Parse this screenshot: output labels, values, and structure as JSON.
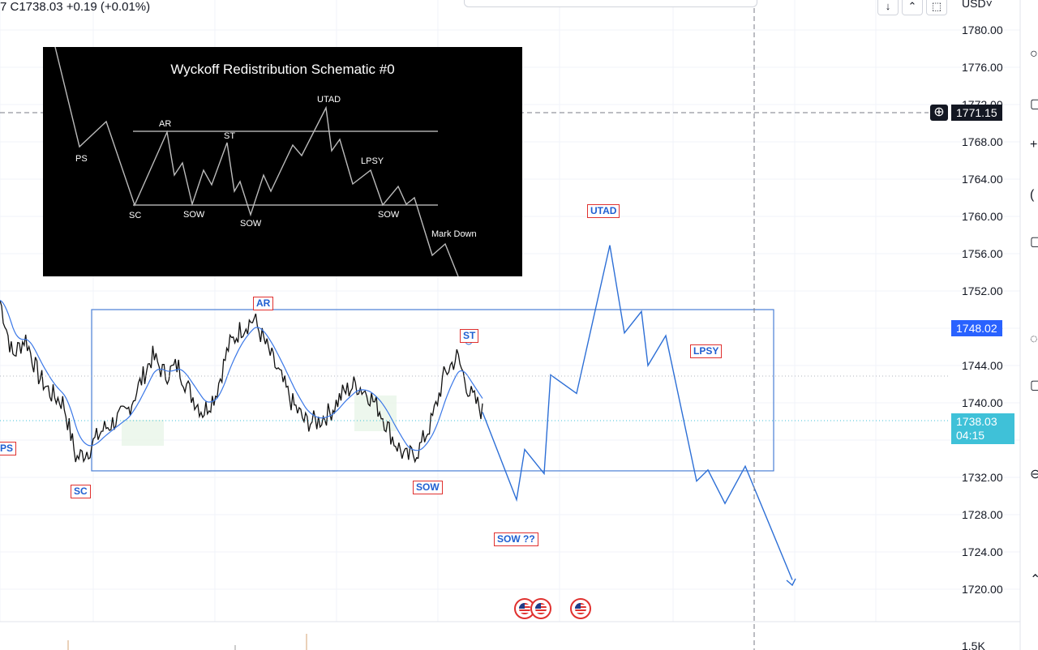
{
  "header": {
    "ohlc_text": "7  C1738.03  +0.19 (+0.01%)"
  },
  "currency": "USD",
  "chart_data": {
    "type": "line",
    "title": "",
    "ylim": [
      1718,
      1782
    ],
    "y_ticks": [
      "1780.00",
      "1776.00",
      "1772.00",
      "1768.00",
      "1764.00",
      "1760.00",
      "1756.00",
      "1752.00",
      "1748.00",
      "1744.00",
      "1740.00",
      "1736.00",
      "1732.00",
      "1728.00",
      "1724.00",
      "1720.00"
    ],
    "y_tick_values": [
      1780,
      1776,
      1772,
      1768,
      1764,
      1760,
      1756,
      1752,
      1748,
      1744,
      1740,
      1736,
      1732,
      1728,
      1724,
      1720
    ],
    "volume_tick": "1.5K",
    "crosshair_price": "1771.15",
    "range_high_price": "1748.02",
    "last_price": "1738.03",
    "countdown": "04:15",
    "range_box": {
      "top": 1750.0,
      "bottom": 1732.7
    },
    "price_path": [
      1751,
      1745,
      1747,
      1743,
      1741,
      1740,
      1734,
      1735,
      1737,
      1738,
      1739,
      1742,
      1745,
      1743,
      1744,
      1741,
      1739,
      1741,
      1746,
      1748,
      1749,
      1746,
      1743,
      1740,
      1738,
      1738,
      1739,
      1741,
      1742,
      1741,
      1739,
      1736,
      1734,
      1735,
      1738,
      1743,
      1745,
      1741,
      1739
    ],
    "projection": [
      [
        0,
        1739.0
      ],
      [
        1,
        1729.6
      ],
      [
        2,
        1735.0
      ],
      [
        3,
        1732.4
      ],
      [
        4,
        1743.0
      ],
      [
        5,
        1741.0
      ],
      [
        6,
        1756.9
      ],
      [
        7,
        1747.5
      ],
      [
        8,
        1749.8
      ],
      [
        9,
        1744.0
      ],
      [
        10,
        1747.2
      ],
      [
        11,
        1731.6
      ],
      [
        12,
        1732.8
      ],
      [
        13,
        1729.2
      ],
      [
        14,
        1733.2
      ],
      [
        15,
        1721.0
      ]
    ],
    "labels": [
      {
        "text": "PS"
      },
      {
        "text": "SC"
      },
      {
        "text": "AR"
      },
      {
        "text": "SOW"
      },
      {
        "text": "ST"
      },
      {
        "text": "SOW ??"
      },
      {
        "text": "UTAD"
      },
      {
        "text": "LPSY"
      }
    ]
  },
  "schematic": {
    "title": "Wyckoff Redistribution Schematic #0",
    "labels": [
      "PS",
      "AR",
      "ST",
      "UTAD",
      "LPSY",
      "SC",
      "SOW",
      "SOW",
      "SOW",
      "Mark Down"
    ]
  },
  "toolbar": {
    "down_icon": "↓",
    "collapse_icon": "⌃",
    "screenshot_icon": "⬚"
  },
  "colors": {
    "accent": "#1f5fd1",
    "label_border": "#e0312f",
    "last_price_bg": "#3fc1d8",
    "badge_bg": "#2962ff",
    "crosshair_bg": "#131722"
  }
}
